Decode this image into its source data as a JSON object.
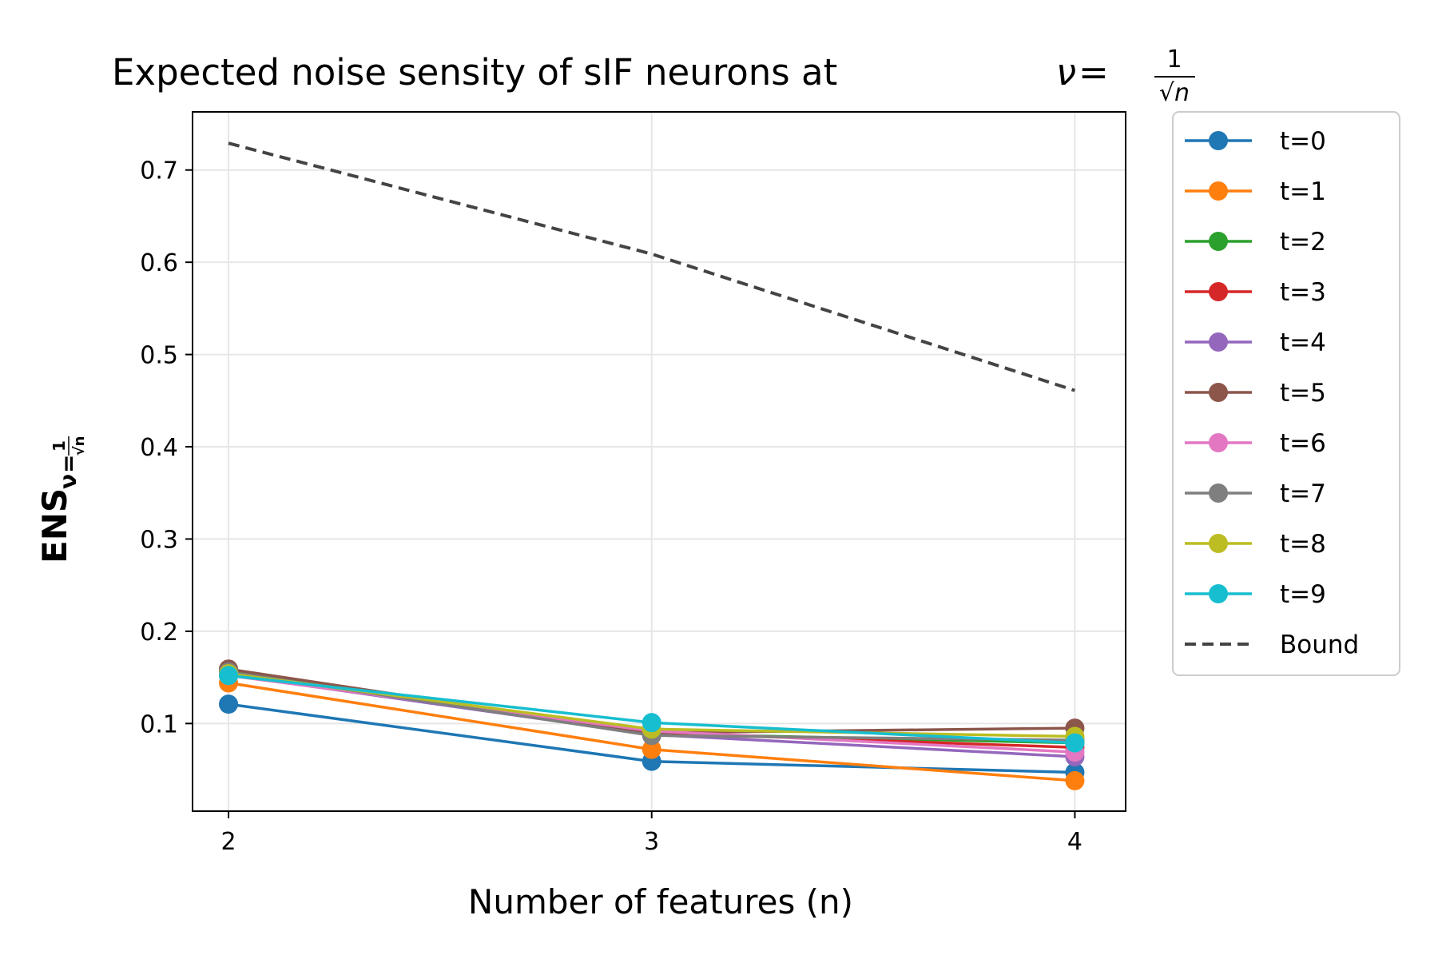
{
  "chart_data": {
    "type": "line",
    "title": "Expected noise sensity of sIF neurons at",
    "title_math": {
      "symbol": "ν",
      "eq": "=",
      "num": "1",
      "den": "√n"
    },
    "xlabel": "Number of features (n)",
    "ylabel": {
      "main": "ENS",
      "sub": "ν",
      "eq": "=",
      "num": "1",
      "den": "√n"
    },
    "x": [
      2,
      3,
      4
    ],
    "xticks": [
      "2",
      "3",
      "4"
    ],
    "xlim": [
      1.915,
      4.12
    ],
    "ylim": [
      0.005,
      0.763
    ],
    "yticks": [
      0.1,
      0.2,
      0.3,
      0.4,
      0.5,
      0.6,
      0.7
    ],
    "ytick_labels": [
      "0.1",
      "0.2",
      "0.3",
      "0.4",
      "0.5",
      "0.6",
      "0.7"
    ],
    "grid": true,
    "legend_position": "outside right",
    "series": [
      {
        "name": "t=0",
        "color": "#1f77b4",
        "values": [
          0.121,
          0.059,
          0.047
        ]
      },
      {
        "name": "t=1",
        "color": "#ff7f0e",
        "values": [
          0.144,
          0.072,
          0.038
        ]
      },
      {
        "name": "t=2",
        "color": "#2ca02c",
        "values": [
          0.157,
          0.089,
          0.079
        ]
      },
      {
        "name": "t=3",
        "color": "#d62728",
        "values": [
          0.155,
          0.09,
          0.074
        ]
      },
      {
        "name": "t=4",
        "color": "#9467bd",
        "values": [
          0.153,
          0.088,
          0.064
        ]
      },
      {
        "name": "t=5",
        "color": "#8c564b",
        "values": [
          0.159,
          0.09,
          0.095
        ]
      },
      {
        "name": "t=6",
        "color": "#e377c2",
        "values": [
          0.152,
          0.092,
          0.069
        ]
      },
      {
        "name": "t=7",
        "color": "#7f7f7f",
        "values": [
          0.156,
          0.087,
          0.082
        ]
      },
      {
        "name": "t=8",
        "color": "#bcbd22",
        "values": [
          0.154,
          0.094,
          0.086
        ]
      },
      {
        "name": "t=9",
        "color": "#17becf",
        "values": [
          0.152,
          0.101,
          0.079
        ]
      },
      {
        "name": "Bound",
        "color": "#444444",
        "dashed": true,
        "values": [
          0.729,
          0.609,
          0.461
        ]
      }
    ]
  }
}
